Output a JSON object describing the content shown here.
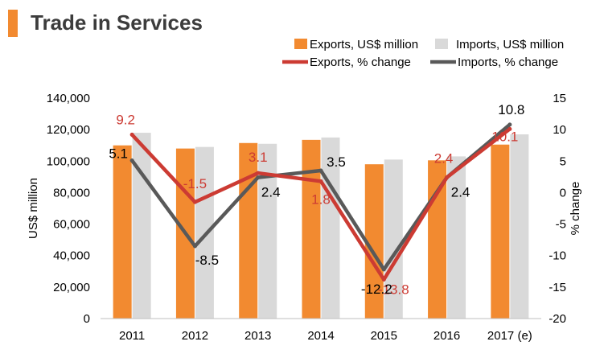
{
  "header": {
    "title": "Trade in Services",
    "accent": "#F28A30"
  },
  "chart_data": {
    "type": "bar",
    "title": "Trade in Services",
    "categories": [
      "2011",
      "2012",
      "2013",
      "2014",
      "2015",
      "2016",
      "2017 (e)"
    ],
    "ylabel": "US$ million",
    "y2label": "% change",
    "ylim": [
      0,
      140000
    ],
    "y2lim": [
      -20,
      15
    ],
    "yticks": [
      "0",
      "20,000",
      "40,000",
      "60,000",
      "80,000",
      "100,000",
      "120,000",
      "140,000"
    ],
    "y2ticks": [
      "-20",
      "-15",
      "-10",
      "-5",
      "0",
      "5",
      "10",
      "15"
    ],
    "series": [
      {
        "name": "Exports, US$ million",
        "type": "bar",
        "axis": "left",
        "color": "#F28A30",
        "values": [
          110000,
          108000,
          111500,
          113500,
          98000,
          100500,
          110500
        ]
      },
      {
        "name": "Imports, US$ million",
        "type": "bar",
        "axis": "left",
        "color": "#D9D9D9",
        "values": [
          118000,
          109000,
          111000,
          115000,
          101000,
          103000,
          117000
        ]
      },
      {
        "name": "Exports, % change",
        "type": "line",
        "axis": "right",
        "color": "#CC3B33",
        "values": [
          9.2,
          -1.5,
          3.1,
          1.8,
          -13.8,
          2.4,
          10.1
        ],
        "labels": [
          "9.2",
          "-1.5",
          "3.1",
          "1.8",
          "-13.8",
          "2.4",
          "10.1"
        ]
      },
      {
        "name": "Imports, % change",
        "type": "line",
        "axis": "right",
        "color": "#595959",
        "values": [
          5.1,
          -8.5,
          2.4,
          3.5,
          -12.2,
          2.4,
          10.8
        ],
        "labels": [
          "5.1",
          "-8.5",
          "2.4",
          "3.5",
          "-12.2",
          "2.4",
          "10.8"
        ]
      }
    ],
    "legend": "top-right"
  }
}
